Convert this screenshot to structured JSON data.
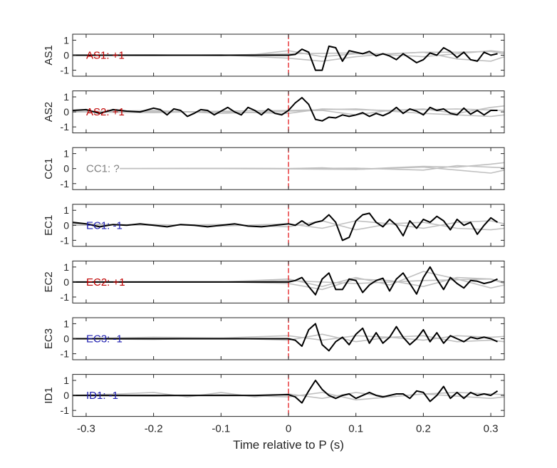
{
  "chart_data": {
    "type": "line",
    "layout": "7 vertically stacked waveform panels sharing one x-axis",
    "xlabel": "Time relative to P (s)",
    "xlim": [
      -0.32,
      0.32
    ],
    "xticks": [
      -0.3,
      -0.2,
      -0.1,
      0,
      0.1,
      0.2,
      0.3
    ],
    "xticklabels": [
      "-0.3",
      "-0.2",
      "-0.1",
      "0",
      "0.1",
      "0.2",
      "0.3"
    ],
    "ylim": [
      -1.4,
      1.4
    ],
    "yticks": [
      -1,
      0,
      1
    ],
    "yticklabels": [
      "-1",
      "0",
      "1"
    ],
    "grid": false,
    "p_arrival_marker": {
      "x": 0,
      "color": "#e41a1c",
      "style": "dashed"
    },
    "colors": {
      "main_trace": "#000000",
      "background_traces": "#c0c0c0",
      "polarity_up": "#c00000",
      "polarity_down": "#1f1fb0",
      "polarity_unknown": "#808080",
      "axes": "#262626"
    },
    "panels": [
      {
        "ylabel": "AS1",
        "polarity_label": "AS1: +1",
        "polarity": "up",
        "main_x": [
          -0.32,
          -0.25,
          -0.2,
          -0.15,
          -0.1,
          -0.05,
          0,
          0.01,
          0.02,
          0.03,
          0.04,
          0.05,
          0.06,
          0.07,
          0.08,
          0.09,
          0.1,
          0.11,
          0.12,
          0.13,
          0.14,
          0.15,
          0.16,
          0.17,
          0.18,
          0.19,
          0.2,
          0.21,
          0.22,
          0.23,
          0.24,
          0.25,
          0.26,
          0.27,
          0.28,
          0.29,
          0.3,
          0.31
        ],
        "main_y": [
          0,
          0,
          0,
          0,
          0,
          0,
          0,
          0.05,
          0.4,
          0.2,
          -1.0,
          -1.0,
          0.6,
          0.5,
          -0.4,
          0.3,
          0.2,
          0.1,
          0.25,
          -0.05,
          0.1,
          -0.05,
          -0.3,
          0.1,
          -0.2,
          -0.5,
          -0.3,
          0.15,
          0.0,
          0.5,
          0.25,
          -0.15,
          0.2,
          -0.3,
          -0.4,
          0.2,
          0.0,
          0.1
        ],
        "background": [
          {
            "x": [
              -0.32,
              -0.2,
              -0.1,
              -0.05,
              0,
              0.05,
              0.1,
              0.15,
              0.2,
              0.25,
              0.3,
              0.32
            ],
            "y": [
              0,
              0.02,
              -0.03,
              0.05,
              0.3,
              -0.1,
              0.1,
              0.1,
              0.2,
              0.2,
              0.25,
              0.1
            ]
          },
          {
            "x": [
              -0.32,
              -0.2,
              -0.1,
              0,
              0.05,
              0.1,
              0.15,
              0.2,
              0.25,
              0.3,
              0.32
            ],
            "y": [
              0,
              -0.02,
              0.02,
              -0.2,
              -0.4,
              -0.1,
              0.1,
              0.2,
              -0.25,
              -0.4,
              -0.1
            ]
          },
          {
            "x": [
              -0.32,
              -0.1,
              0,
              0.1,
              0.2,
              0.3,
              0.32
            ],
            "y": [
              0,
              0,
              0.1,
              0.15,
              -0.1,
              0.3,
              0.2
            ]
          }
        ]
      },
      {
        "ylabel": "AS2",
        "polarity_label": "AS2: +1",
        "polarity": "up",
        "main_x": [
          -0.32,
          -0.3,
          -0.28,
          -0.26,
          -0.24,
          -0.22,
          -0.2,
          -0.19,
          -0.18,
          -0.17,
          -0.16,
          -0.15,
          -0.14,
          -0.13,
          -0.12,
          -0.11,
          -0.1,
          -0.09,
          -0.08,
          -0.07,
          -0.06,
          -0.05,
          -0.04,
          -0.03,
          -0.02,
          -0.01,
          0,
          0.01,
          0.02,
          0.03,
          0.04,
          0.05,
          0.06,
          0.07,
          0.08,
          0.09,
          0.1,
          0.11,
          0.12,
          0.13,
          0.14,
          0.15,
          0.16,
          0.17,
          0.18,
          0.19,
          0.2,
          0.21,
          0.22,
          0.23,
          0.24,
          0.25,
          0.26,
          0.27,
          0.28,
          0.29,
          0.3,
          0.31
        ],
        "main_y": [
          0.1,
          0.15,
          -0.1,
          0.15,
          0.05,
          0.0,
          0.25,
          0.15,
          -0.2,
          0.2,
          0.1,
          -0.3,
          -0.1,
          0.15,
          0.1,
          -0.2,
          0.05,
          0.3,
          0.0,
          -0.2,
          0.3,
          0.1,
          -0.2,
          0.2,
          -0.1,
          -0.2,
          0.1,
          0.6,
          0.95,
          0.5,
          -0.5,
          -0.6,
          -0.35,
          -0.4,
          -0.2,
          -0.3,
          -0.2,
          -0.05,
          -0.3,
          -0.1,
          -0.25,
          -0.05,
          0.3,
          -0.1,
          0.2,
          0.05,
          -0.2,
          0.3,
          0.1,
          0.2,
          -0.1,
          -0.2,
          0.25,
          -0.15,
          0.1,
          -0.2,
          0.1,
          0.1
        ],
        "background": [
          {
            "x": [
              -0.32,
              -0.2,
              -0.1,
              0,
              0.05,
              0.1,
              0.15,
              0.2,
              0.25,
              0.3,
              0.32
            ],
            "y": [
              0,
              0.1,
              -0.1,
              0.05,
              0.1,
              -0.2,
              0.1,
              0.2,
              -0.1,
              0.3,
              0.4
            ]
          },
          {
            "x": [
              -0.32,
              -0.2,
              -0.1,
              0,
              0.1,
              0.2,
              0.3,
              0.32
            ],
            "y": [
              0,
              -0.05,
              0.05,
              0.1,
              0.2,
              -0.1,
              -0.3,
              -0.2
            ]
          },
          {
            "x": [
              -0.32,
              -0.1,
              0,
              0.05,
              0.15,
              0.25,
              0.32
            ],
            "y": [
              0.05,
              0,
              -0.1,
              0.2,
              0.1,
              0.2,
              0.1
            ]
          }
        ]
      },
      {
        "ylabel": "CC1",
        "polarity_label": "CC1: ?",
        "polarity": "unknown",
        "main_x": [],
        "main_y": [],
        "background": [
          {
            "x": [
              -0.25,
              -0.2,
              -0.1,
              0,
              0.05,
              0.1,
              0.15,
              0.2,
              0.25,
              0.3,
              0.32
            ],
            "y": [
              0,
              0,
              0.02,
              0,
              0.05,
              -0.05,
              0.05,
              0.15,
              0.1,
              0.3,
              0.4
            ]
          },
          {
            "x": [
              -0.25,
              -0.1,
              0,
              0.1,
              0.2,
              0.3,
              0.32
            ],
            "y": [
              0,
              0,
              -0.02,
              -0.05,
              0.1,
              -0.3,
              -0.1
            ]
          },
          {
            "x": [
              -0.25,
              -0.1,
              0,
              0.1,
              0.2,
              0.25,
              0.32
            ],
            "y": [
              0,
              0.02,
              0,
              0.03,
              -0.1,
              0.2,
              0.05
            ]
          }
        ]
      },
      {
        "ylabel": "EC1",
        "polarity_label": "EC1: -1",
        "polarity": "down",
        "main_x": [
          -0.32,
          -0.3,
          -0.28,
          -0.26,
          -0.24,
          -0.22,
          -0.2,
          -0.18,
          -0.16,
          -0.14,
          -0.12,
          -0.1,
          -0.08,
          -0.06,
          -0.04,
          -0.02,
          0,
          0.01,
          0.02,
          0.03,
          0.04,
          0.05,
          0.06,
          0.07,
          0.08,
          0.09,
          0.1,
          0.11,
          0.12,
          0.13,
          0.14,
          0.15,
          0.16,
          0.17,
          0.18,
          0.19,
          0.2,
          0.21,
          0.22,
          0.23,
          0.24,
          0.25,
          0.26,
          0.27,
          0.28,
          0.29,
          0.3,
          0.31
        ],
        "main_y": [
          0.2,
          0.1,
          -0.1,
          0.05,
          0.0,
          0.1,
          0.0,
          -0.1,
          0.05,
          0.0,
          -0.1,
          0.0,
          0.1,
          -0.05,
          -0.1,
          0.0,
          0.1,
          0.0,
          0.3,
          0.0,
          0.2,
          0.3,
          0.7,
          0.2,
          -1.0,
          -0.8,
          0.3,
          0.7,
          0.8,
          0.2,
          -0.1,
          0.4,
          0.0,
          -0.7,
          0.3,
          -0.2,
          0.4,
          0.2,
          0.6,
          0.3,
          -0.3,
          0.4,
          0.0,
          0.2,
          -0.6,
          0.0,
          0.5,
          0.2
        ],
        "background": [
          {
            "x": [
              -0.32,
              -0.2,
              -0.1,
              0,
              0.05,
              0.1,
              0.15,
              0.2,
              0.25,
              0.3,
              0.32
            ],
            "y": [
              0,
              0.05,
              -0.05,
              0.1,
              -0.2,
              0.3,
              0.1,
              -0.2,
              0.2,
              0.3,
              0.1
            ]
          },
          {
            "x": [
              -0.32,
              -0.2,
              -0.1,
              0,
              0.05,
              0.1,
              0.15,
              0.2,
              0.25,
              0.3,
              0.32
            ],
            "y": [
              0.1,
              0,
              0.05,
              -0.1,
              0.3,
              -0.3,
              0.1,
              0.2,
              -0.2,
              -0.3,
              -0.2
            ]
          }
        ]
      },
      {
        "ylabel": "EC2",
        "polarity_label": "EC2: +1",
        "polarity": "up",
        "main_x": [
          -0.32,
          -0.2,
          -0.1,
          -0.05,
          0,
          0.01,
          0.02,
          0.03,
          0.04,
          0.05,
          0.06,
          0.07,
          0.08,
          0.09,
          0.1,
          0.11,
          0.12,
          0.13,
          0.14,
          0.15,
          0.16,
          0.17,
          0.18,
          0.19,
          0.2,
          0.21,
          0.22,
          0.23,
          0.24,
          0.25,
          0.26,
          0.27,
          0.28,
          0.29,
          0.3,
          0.31
        ],
        "main_y": [
          0,
          0,
          0,
          0,
          0,
          0.1,
          0.3,
          -0.3,
          -0.85,
          0.2,
          0.6,
          -0.5,
          -0.5,
          0.2,
          0.1,
          -0.7,
          -0.2,
          0.1,
          0.25,
          -0.6,
          0.2,
          0.6,
          -0.1,
          -0.8,
          0.3,
          1.0,
          0.2,
          -0.5,
          0.3,
          -0.1,
          -0.4,
          0.1,
          0.05,
          -0.1,
          0.0,
          0.2
        ],
        "background": [
          {
            "x": [
              -0.32,
              -0.1,
              0,
              0.05,
              0.1,
              0.15,
              0.2,
              0.25,
              0.3,
              0.32
            ],
            "y": [
              0,
              0,
              0.2,
              -0.3,
              0.3,
              -0.2,
              0.7,
              0.2,
              -0.4,
              -0.2
            ]
          },
          {
            "x": [
              -0.32,
              -0.1,
              0,
              0.05,
              0.1,
              0.15,
              0.2,
              0.25,
              0.3,
              0.32
            ],
            "y": [
              0,
              0.02,
              -0.1,
              -0.5,
              0.2,
              0.1,
              -0.3,
              0.3,
              0.2,
              -0.1
            ]
          },
          {
            "x": [
              -0.32,
              -0.1,
              0,
              0.1,
              0.2,
              0.3,
              0.32
            ],
            "y": [
              0,
              0,
              0.1,
              -0.1,
              0.1,
              0.2,
              0
            ]
          }
        ]
      },
      {
        "ylabel": "EC3",
        "polarity_label": "EC3: -1",
        "polarity": "down",
        "main_x": [
          -0.32,
          -0.2,
          -0.1,
          -0.05,
          0,
          0.01,
          0.02,
          0.03,
          0.04,
          0.05,
          0.06,
          0.07,
          0.08,
          0.09,
          0.1,
          0.11,
          0.12,
          0.13,
          0.14,
          0.15,
          0.16,
          0.17,
          0.18,
          0.19,
          0.2,
          0.21,
          0.22,
          0.23,
          0.24,
          0.25,
          0.26,
          0.27,
          0.28,
          0.29,
          0.3,
          0.31
        ],
        "main_y": [
          0,
          0,
          0,
          0,
          0,
          -0.1,
          -0.5,
          0.6,
          1.0,
          -0.4,
          -0.8,
          -0.2,
          0.1,
          -0.4,
          0.3,
          0.7,
          -0.3,
          0.4,
          -0.3,
          0.1,
          0.8,
          0.1,
          -0.4,
          0.0,
          0.6,
          -0.2,
          0.4,
          -0.3,
          0.2,
          0.0,
          -0.2,
          0.1,
          0.0,
          0.1,
          0.0,
          -0.2
        ],
        "background": [
          {
            "x": [
              -0.32,
              -0.2,
              -0.1,
              0,
              0.05,
              0.1,
              0.15,
              0.2,
              0.25,
              0.3,
              0.32
            ],
            "y": [
              0,
              0.1,
              0.05,
              0.2,
              -0.1,
              0.2,
              0.1,
              -0.1,
              0.2,
              0.1,
              0.15
            ]
          },
          {
            "x": [
              -0.32,
              -0.2,
              -0.1,
              0,
              0.05,
              0.1,
              0.15,
              0.2,
              0.25,
              0.3,
              0.32
            ],
            "y": [
              0,
              -0.05,
              0.05,
              -0.1,
              0.3,
              -0.2,
              0.1,
              0.2,
              -0.2,
              -0.1,
              -0.2
            ]
          }
        ]
      },
      {
        "ylabel": "ID1",
        "polarity_label": "ID1: -1",
        "polarity": "down",
        "main_x": [
          -0.32,
          -0.2,
          -0.1,
          -0.05,
          0,
          0.01,
          0.02,
          0.03,
          0.04,
          0.05,
          0.06,
          0.07,
          0.08,
          0.09,
          0.1,
          0.11,
          0.12,
          0.13,
          0.14,
          0.15,
          0.16,
          0.17,
          0.18,
          0.19,
          0.2,
          0.21,
          0.22,
          0.23,
          0.24,
          0.25,
          0.26,
          0.27,
          0.28,
          0.29,
          0.3,
          0.31
        ],
        "main_y": [
          0,
          0,
          0,
          0,
          0.05,
          -0.1,
          -0.5,
          0.3,
          1.0,
          0.4,
          0.0,
          -0.2,
          0.0,
          0.1,
          -0.2,
          0.0,
          0.2,
          0.0,
          -0.1,
          0.0,
          0.1,
          0.1,
          -0.2,
          0.3,
          0.2,
          -0.4,
          0.0,
          0.6,
          -0.2,
          0.2,
          -0.2,
          0.2,
          0.0,
          0.1,
          0.0,
          0.3
        ],
        "background": [
          {
            "x": [
              -0.32,
              -0.25,
              -0.2,
              -0.15,
              -0.1,
              -0.05,
              0,
              0.05,
              0.1,
              0.15,
              0.2,
              0.25,
              0.3,
              0.32
            ],
            "y": [
              0,
              0.1,
              0.2,
              -0.1,
              0.2,
              -0.1,
              0.1,
              -0.2,
              0.2,
              -0.1,
              0.1,
              0.2,
              0.1,
              0.05
            ]
          },
          {
            "x": [
              -0.32,
              -0.2,
              -0.1,
              0,
              0.05,
              0.1,
              0.2,
              0.3,
              0.32
            ],
            "y": [
              0,
              -0.05,
              0.05,
              -0.1,
              0.2,
              -0.3,
              0.1,
              -0.2,
              -0.1
            ]
          }
        ]
      }
    ]
  }
}
